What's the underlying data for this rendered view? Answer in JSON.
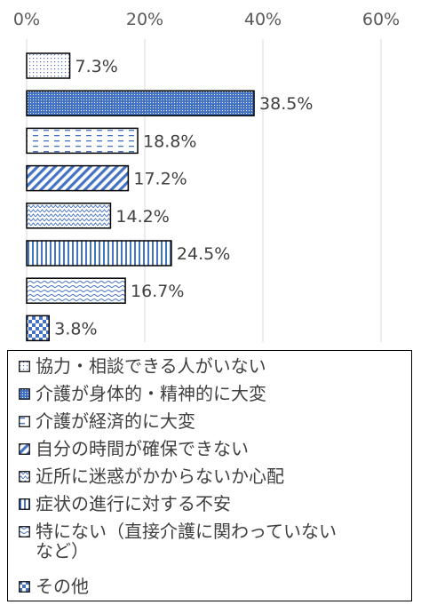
{
  "chart_data": {
    "type": "bar",
    "orientation": "horizontal",
    "title": "",
    "xlabel": "",
    "ylabel": "",
    "xlim": [
      0,
      60
    ],
    "x_ticks": [
      "0%",
      "20%",
      "40%",
      "60%"
    ],
    "categories": [
      "協力・相談できる人がいない",
      "介護が身体的・精神的に大変",
      "介護が経済的に大変",
      "自分の時間が確保できない",
      "近所に迷惑がかからないか心配",
      "症状の進行に対する不安",
      "特にない（直接介護に関わっていないなど）",
      "その他"
    ],
    "values": [
      7.3,
      38.5,
      18.8,
      17.2,
      14.2,
      24.5,
      16.7,
      3.8
    ],
    "value_labels": [
      "7.3%",
      "38.5%",
      "18.8%",
      "17.2%",
      "14.2%",
      "24.5%",
      "16.7%",
      "3.8%"
    ],
    "legend_labels": [
      "協力・相談できる人がいない",
      "介護が身体的・精神的に大変",
      "介護が経済的に大変",
      "自分の時間が確保できない",
      "近所に迷惑がかからないか心配",
      "症状の進行に対する不安",
      "特にない（直接介護に関わっていない\nなど）",
      "その他"
    ],
    "patterns": [
      "dots-sparse",
      "dots-dense",
      "dashes",
      "diagonal",
      "zigzag-fine",
      "vertical",
      "waves",
      "checker"
    ],
    "grid": true,
    "legend_position": "bottom",
    "colors": {
      "accent": "#4472C4",
      "outline": "#000000",
      "grid": "#D9D9D9"
    }
  }
}
